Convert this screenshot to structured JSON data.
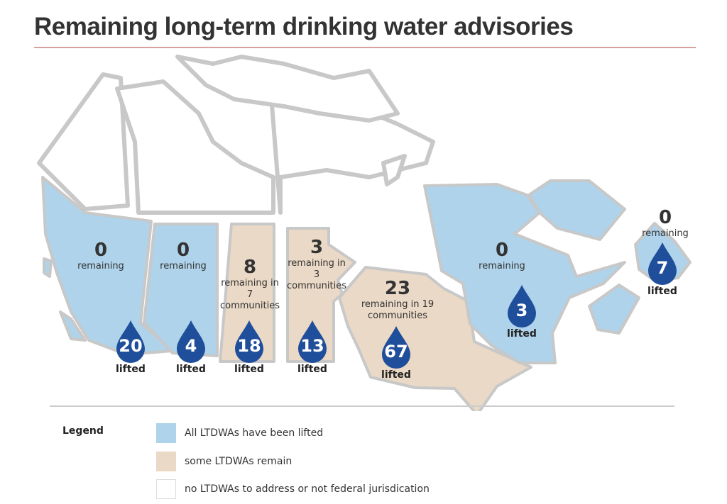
{
  "title": "Remaining long-term drinking water advisories",
  "colors": {
    "lifted": "#aed3ea",
    "remain": "#ead9c6",
    "none": "#ffffff",
    "drop": "#1f4e9b",
    "border": "#c8c8c8"
  },
  "regions": [
    {
      "name": "British Columbia",
      "status": "lifted",
      "remaining": "0",
      "remaining_text": "remaining",
      "lifted": "20",
      "lifted_label": "lifted"
    },
    {
      "name": "Alberta",
      "status": "lifted",
      "remaining": "0",
      "remaining_text": "remaining",
      "lifted": "4",
      "lifted_label": "lifted"
    },
    {
      "name": "Saskatchewan",
      "status": "remain",
      "remaining": "8",
      "remaining_text": "remaining in 7 communities",
      "lifted": "18",
      "lifted_label": "lifted"
    },
    {
      "name": "Manitoba",
      "status": "remain",
      "remaining": "3",
      "remaining_text": "remaining in 3 communities",
      "lifted": "13",
      "lifted_label": "lifted"
    },
    {
      "name": "Ontario",
      "status": "remain",
      "remaining": "23",
      "remaining_text": "remaining in 19 communities",
      "lifted": "67",
      "lifted_label": "lifted"
    },
    {
      "name": "Quebec",
      "status": "lifted",
      "remaining": "0",
      "remaining_text": "remaining",
      "lifted": "3",
      "lifted_label": "lifted"
    },
    {
      "name": "Atlantic",
      "status": "lifted",
      "remaining": "0",
      "remaining_text": "remaining",
      "lifted": "7",
      "lifted_label": "lifted"
    }
  ],
  "legend": {
    "title": "Legend",
    "items": [
      {
        "label": "All LTDWAs have been lifted",
        "color": "#aed3ea"
      },
      {
        "label": "some LTDWAs remain",
        "color": "#ead9c6"
      },
      {
        "label": "no LTDWAs to address or not federal jurisdication",
        "color": "#ffffff"
      }
    ]
  }
}
